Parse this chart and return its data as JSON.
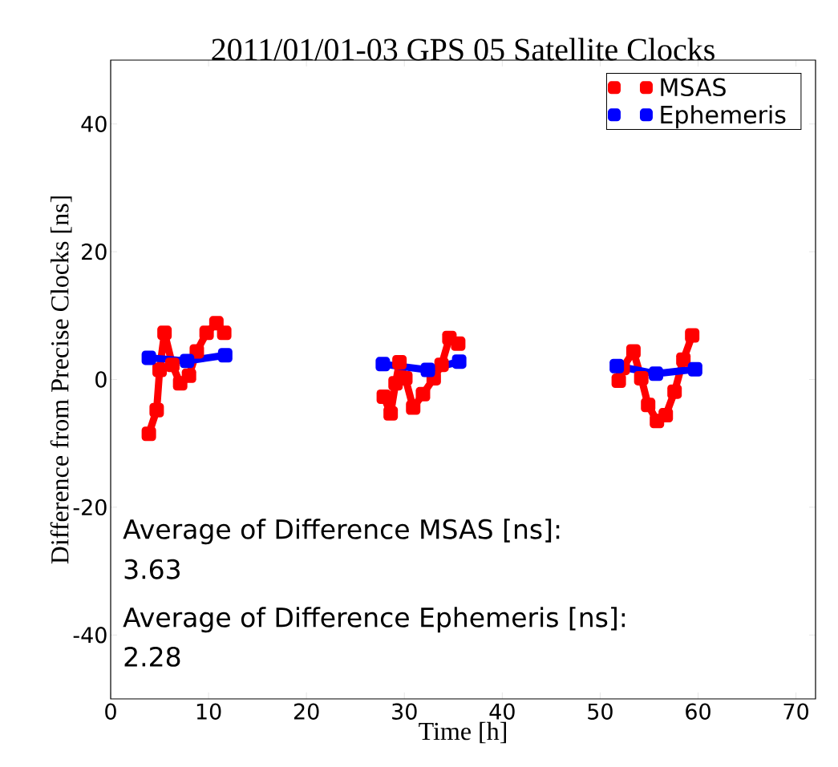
{
  "chart_data": {
    "type": "line",
    "title": "2011/01/01-03 GPS 05 Satellite Clocks",
    "xlabel": "Time [h]",
    "ylabel": "Difference from Precise Clocks [ns]",
    "xlim": [
      0,
      72
    ],
    "ylim": [
      -50,
      50
    ],
    "xticks": [
      0,
      10,
      20,
      30,
      40,
      50,
      60,
      70
    ],
    "yticks": [
      -40,
      -20,
      0,
      20,
      40
    ],
    "marker": "square",
    "legend": "top right",
    "grid": false,
    "series": [
      {
        "name": "MSAS",
        "color": "#ff0000",
        "x": [
          3.9,
          4.7,
          5.0,
          5.5,
          6.3,
          7.1,
          8.0,
          8.8,
          9.8,
          10.8,
          11.6,
          20,
          27.9,
          28.6,
          29.1,
          29.5,
          30.1,
          30.9,
          31.9,
          33.0,
          33.8,
          34.6,
          35.5,
          45,
          51.9,
          52.3,
          53.4,
          54.2,
          54.9,
          55.8,
          56.7,
          57.6,
          58.5,
          59.4
        ],
        "values": [
          -8.5,
          -4.8,
          1.5,
          7.3,
          2.3,
          -0.6,
          0.6,
          4.4,
          7.3,
          8.8,
          7.3,
          null,
          -2.7,
          -5.3,
          -0.6,
          2.7,
          0.2,
          -4.4,
          -2.3,
          0.2,
          2.3,
          6.5,
          5.6,
          null,
          -0.2,
          1.8,
          4.4,
          0.2,
          -4.0,
          -6.5,
          -5.6,
          -1.9,
          3.1,
          6.9
        ]
      },
      {
        "name": "Ephemeris",
        "color": "#0000ff",
        "x": [
          3.9,
          7.8,
          11.7,
          20,
          27.8,
          32.4,
          35.6,
          45,
          51.7,
          55.7,
          59.7
        ],
        "values": [
          3.4,
          2.9,
          3.8,
          null,
          2.4,
          1.5,
          2.8,
          null,
          2.1,
          0.9,
          1.6
        ]
      }
    ],
    "annotations": [
      "Average of Difference MSAS [ns]:",
      "3.63",
      "Average of Difference Ephemeris [ns]:",
      "2.28"
    ]
  }
}
